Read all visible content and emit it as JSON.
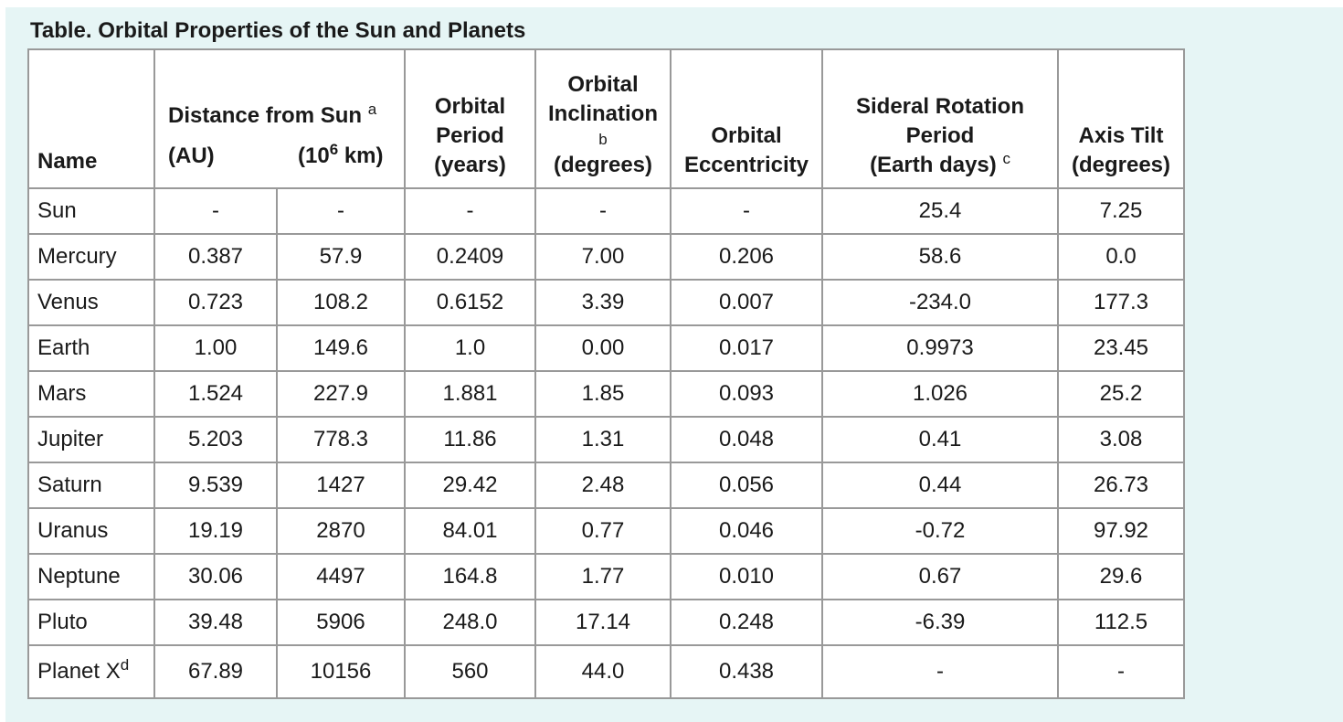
{
  "caption": "Table. Orbital Properties of the Sun and Planets",
  "headers": {
    "name": "Name",
    "distance_title": "Distance from Sun",
    "distance_note": "a",
    "distance_au": "(AU)",
    "distance_km_prefix": "(10",
    "distance_km_exp": "6",
    "distance_km_suffix": " km)",
    "orbital_period_l1": "Orbital",
    "orbital_period_l2": "Period",
    "orbital_period_l3": "(years)",
    "inclination_l1": "Orbital",
    "inclination_l2": "Inclination",
    "inclination_note": "b",
    "inclination_l3": "(degrees)",
    "eccentricity_l1": "Orbital",
    "eccentricity_l2": "Eccentricity",
    "rotation_l1": "Sideral Rotation",
    "rotation_l2": "Period",
    "rotation_l3": "(Earth days)",
    "rotation_note": "c",
    "axis_l1": "Axis Tilt",
    "axis_l2": "(degrees)"
  },
  "rows": [
    {
      "name": "Sun",
      "name_sup": "",
      "au": "-",
      "km": "-",
      "period": "-",
      "inclination": "-",
      "eccentricity": "-",
      "rotation": "25.4",
      "tilt": "7.25"
    },
    {
      "name": "Mercury",
      "name_sup": "",
      "au": "0.387",
      "km": "57.9",
      "period": "0.2409",
      "inclination": "7.00",
      "eccentricity": "0.206",
      "rotation": "58.6",
      "tilt": "0.0"
    },
    {
      "name": "Venus",
      "name_sup": "",
      "au": "0.723",
      "km": "108.2",
      "period": "0.6152",
      "inclination": "3.39",
      "eccentricity": "0.007",
      "rotation": "-234.0",
      "tilt": "177.3"
    },
    {
      "name": "Earth",
      "name_sup": "",
      "au": "1.00",
      "km": "149.6",
      "period": "1.0",
      "inclination": "0.00",
      "eccentricity": "0.017",
      "rotation": "0.9973",
      "tilt": "23.45"
    },
    {
      "name": "Mars",
      "name_sup": "",
      "au": "1.524",
      "km": "227.9",
      "period": "1.881",
      "inclination": "1.85",
      "eccentricity": "0.093",
      "rotation": "1.026",
      "tilt": "25.2"
    },
    {
      "name": "Jupiter",
      "name_sup": "",
      "au": "5.203",
      "km": "778.3",
      "period": "11.86",
      "inclination": "1.31",
      "eccentricity": "0.048",
      "rotation": "0.41",
      "tilt": "3.08"
    },
    {
      "name": "Saturn",
      "name_sup": "",
      "au": "9.539",
      "km": "1427",
      "period": "29.42",
      "inclination": "2.48",
      "eccentricity": "0.056",
      "rotation": "0.44",
      "tilt": "26.73"
    },
    {
      "name": "Uranus",
      "name_sup": "",
      "au": "19.19",
      "km": "2870",
      "period": "84.01",
      "inclination": "0.77",
      "eccentricity": "0.046",
      "rotation": "-0.72",
      "tilt": "97.92"
    },
    {
      "name": "Neptune",
      "name_sup": "",
      "au": "30.06",
      "km": "4497",
      "period": "164.8",
      "inclination": "1.77",
      "eccentricity": "0.010",
      "rotation": "0.67",
      "tilt": "29.6"
    },
    {
      "name": "Pluto",
      "name_sup": "",
      "au": "39.48",
      "km": "5906",
      "period": "248.0",
      "inclination": "17.14",
      "eccentricity": "0.248",
      "rotation": "-6.39",
      "tilt": "112.5"
    },
    {
      "name": "Planet X",
      "name_sup": "d",
      "au": "67.89",
      "km": "10156",
      "period": "560",
      "inclination": "44.0",
      "eccentricity": "0.438",
      "rotation": "-",
      "tilt": "-"
    }
  ]
}
